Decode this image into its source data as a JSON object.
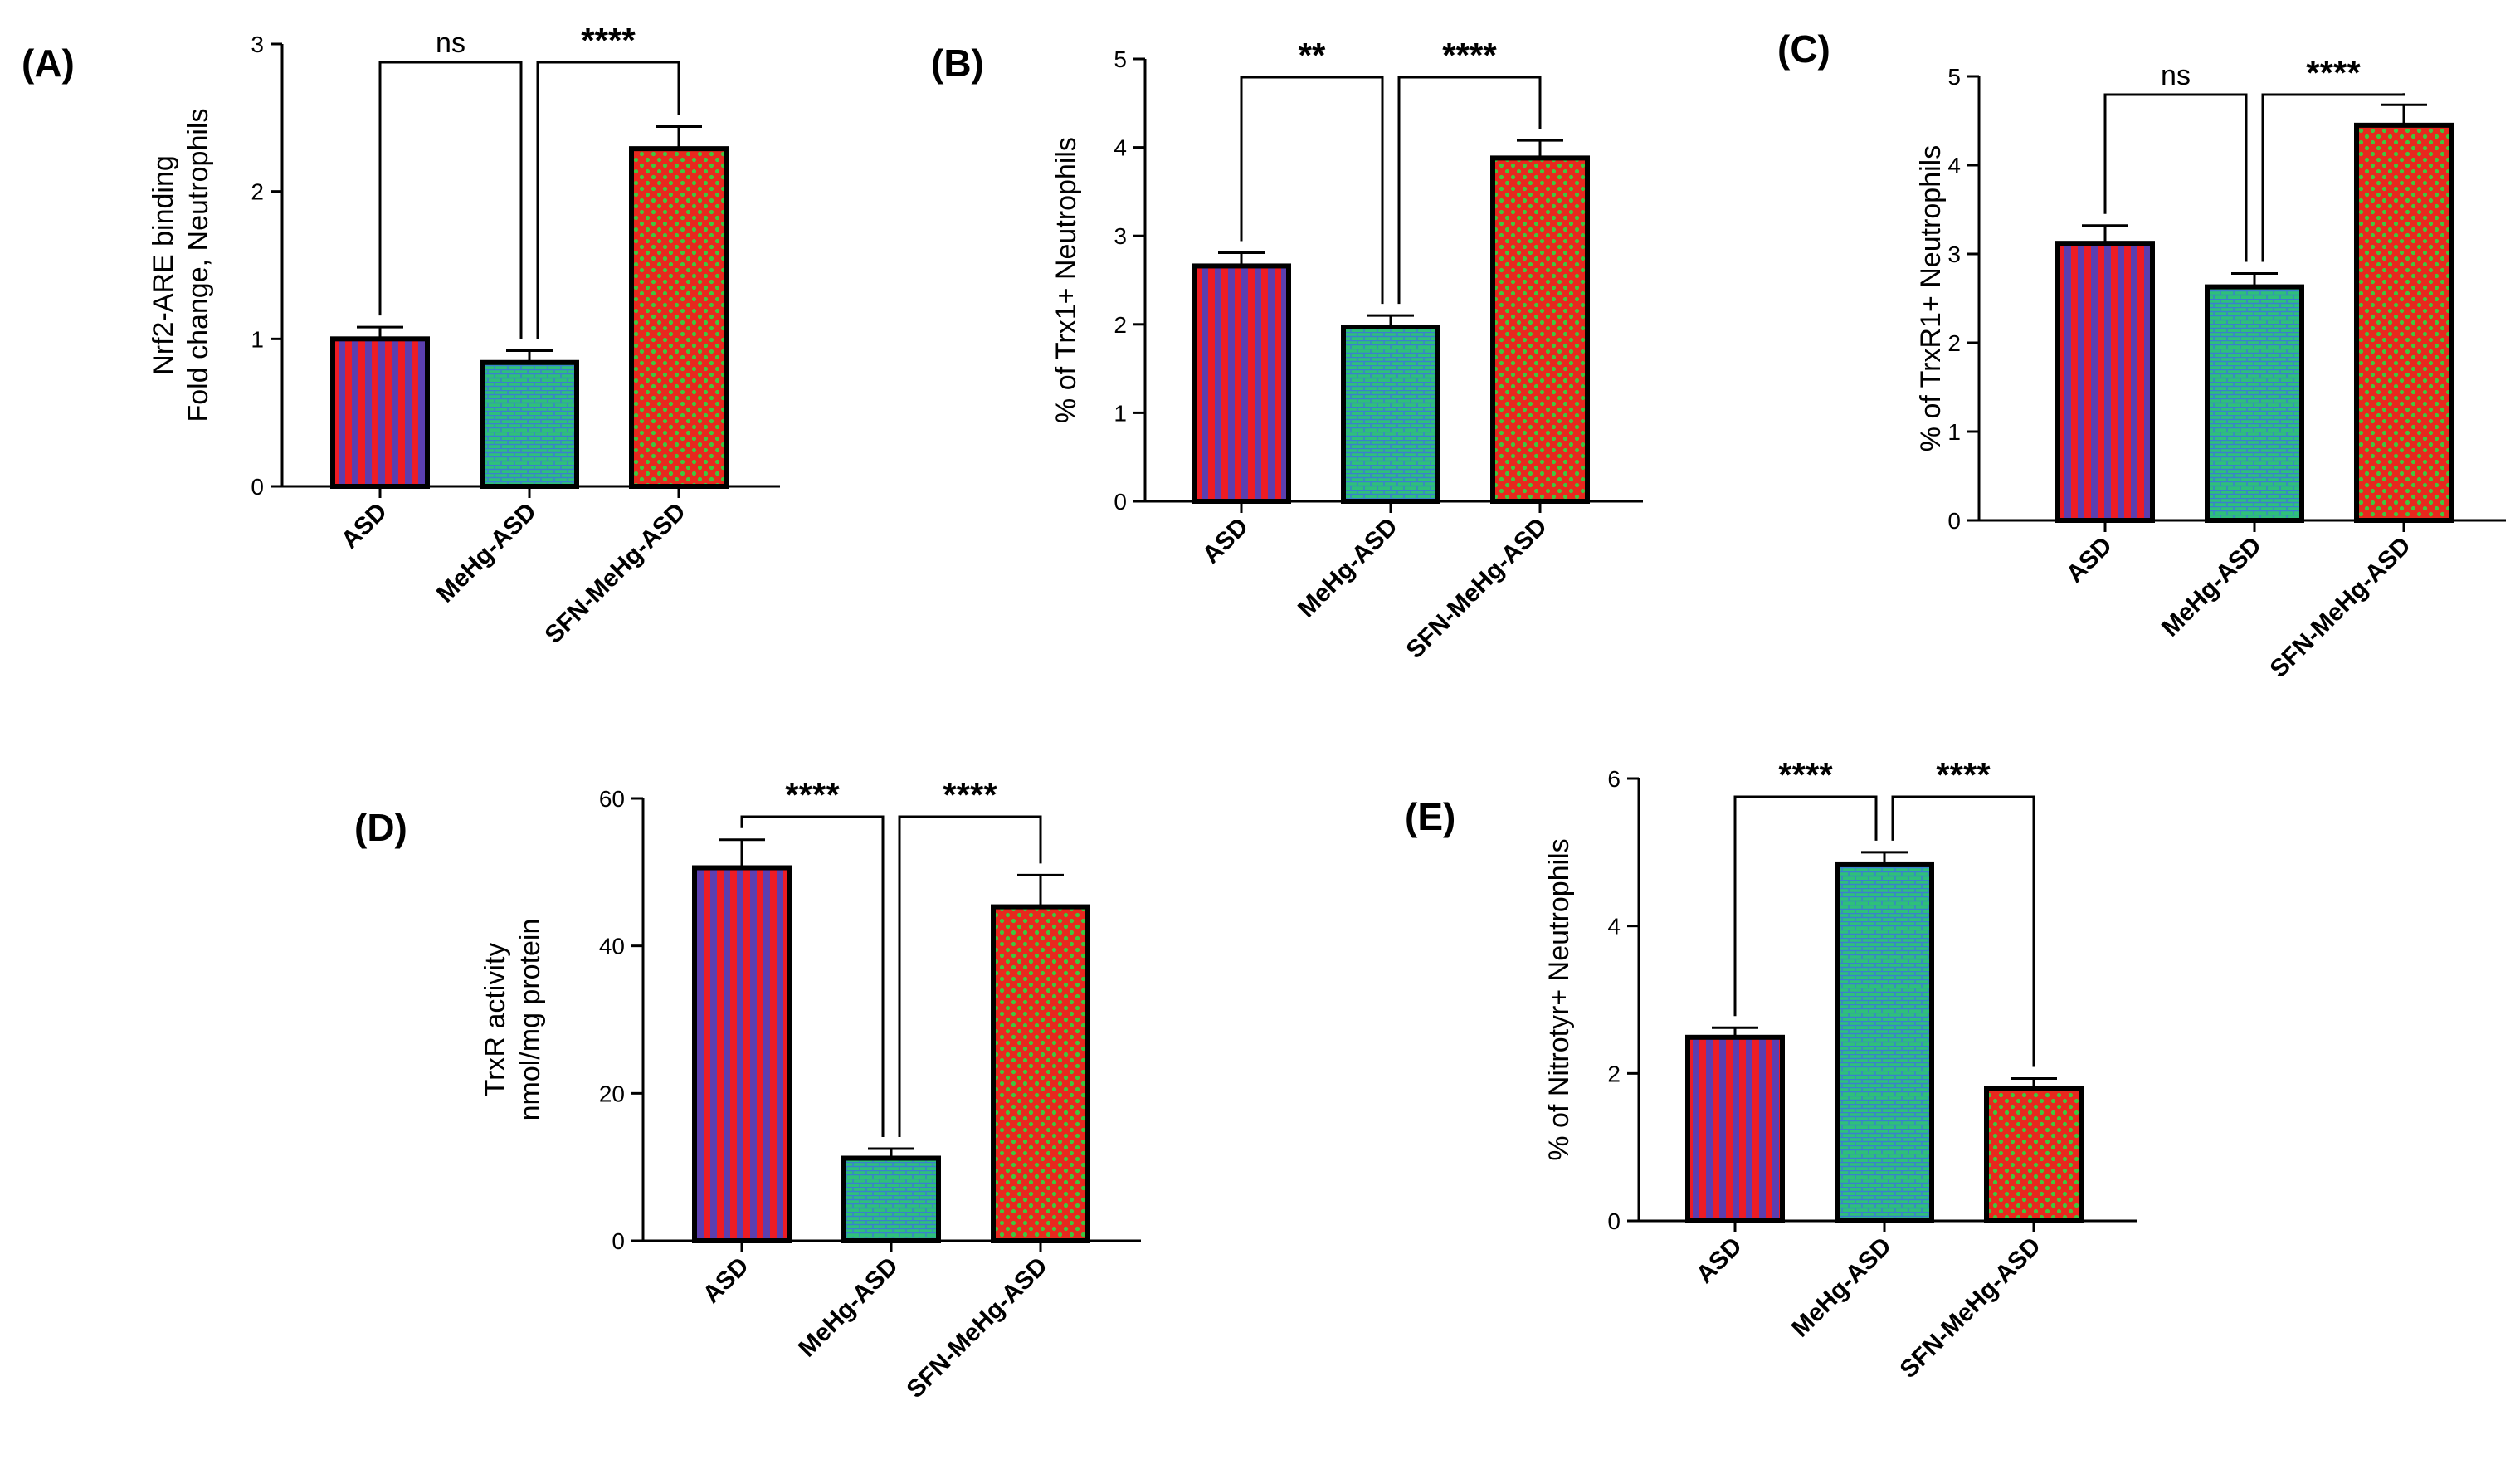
{
  "colors": {
    "stripe_red": "#ee1c24",
    "stripe_blue": "#5b3fb0",
    "brick_green": "#2ec07a",
    "brick_blue": "#3a7fd0",
    "check_red": "#e8281e",
    "check_green": "#3ec83e",
    "outline": "#000000"
  },
  "chart_data": [
    {
      "panel": "(A)",
      "type": "bar",
      "categories": [
        "ASD",
        "MeHg-ASD",
        "SFN-MeHg-ASD"
      ],
      "values": [
        1.0,
        0.84,
        2.29
      ],
      "errors": [
        0.08,
        0.08,
        0.15
      ],
      "ylabel": [
        "Nrf2-ARE binding",
        "Fold change,  Neutrophils"
      ],
      "ylim": [
        0,
        3
      ],
      "yticks": [
        "0",
        "1",
        "2",
        "3"
      ],
      "brackets": [
        {
          "from": 0,
          "to": 1,
          "label": "ns"
        },
        {
          "from": 1,
          "to": 2,
          "label": "****"
        }
      ]
    },
    {
      "panel": "(B)",
      "type": "bar",
      "categories": [
        "ASD",
        "MeHg-ASD",
        "SFN-MeHg-ASD"
      ],
      "values": [
        2.66,
        1.97,
        3.88
      ],
      "errors": [
        0.15,
        0.13,
        0.2
      ],
      "ylabel": [
        "% of Trx1+ Neutrophils"
      ],
      "ylim": [
        0,
        5
      ],
      "yticks": [
        "0",
        "1",
        "2",
        "3",
        "4",
        "5"
      ],
      "brackets": [
        {
          "from": 0,
          "to": 1,
          "label": "**"
        },
        {
          "from": 1,
          "to": 2,
          "label": "****"
        }
      ]
    },
    {
      "panel": "(C)",
      "type": "bar",
      "categories": [
        "ASD",
        "MeHg-ASD",
        "SFN-MeHg-ASD"
      ],
      "values": [
        3.12,
        2.63,
        4.45
      ],
      "errors": [
        0.2,
        0.15,
        0.23
      ],
      "ylabel": [
        "% of TrxR1+ Neutrophils"
      ],
      "ylim": [
        0,
        5
      ],
      "yticks": [
        "0",
        "1",
        "2",
        "3",
        "4",
        "5"
      ],
      "brackets": [
        {
          "from": 0,
          "to": 1,
          "label": "ns"
        },
        {
          "from": 1,
          "to": 2,
          "label": "****"
        }
      ]
    },
    {
      "panel": "(D)",
      "type": "bar",
      "categories": [
        "ASD",
        "MeHg-ASD",
        "SFN-MeHg-ASD"
      ],
      "values": [
        50.6,
        11.2,
        45.3
      ],
      "errors": [
        3.8,
        1.3,
        4.3
      ],
      "ylabel": [
        "TrxR activity",
        "nmol/mg protein"
      ],
      "ylim": [
        0,
        60
      ],
      "yticks": [
        "0",
        "20",
        "40",
        "60"
      ],
      "brackets": [
        {
          "from": 0,
          "to": 1,
          "label": "****"
        },
        {
          "from": 1,
          "to": 2,
          "label": "****"
        }
      ]
    },
    {
      "panel": "(E)",
      "type": "bar",
      "categories": [
        "ASD",
        "MeHg-ASD",
        "SFN-MeHg-ASD"
      ],
      "values": [
        2.49,
        4.83,
        1.79
      ],
      "errors": [
        0.13,
        0.17,
        0.14
      ],
      "ylabel": [
        "% of Nitrotyr+ Neutrophils"
      ],
      "ylim": [
        0,
        6
      ],
      "yticks": [
        "0",
        "2",
        "4",
        "6"
      ],
      "brackets": [
        {
          "from": 0,
          "to": 1,
          "label": "****"
        },
        {
          "from": 1,
          "to": 2,
          "label": "****"
        }
      ]
    }
  ]
}
